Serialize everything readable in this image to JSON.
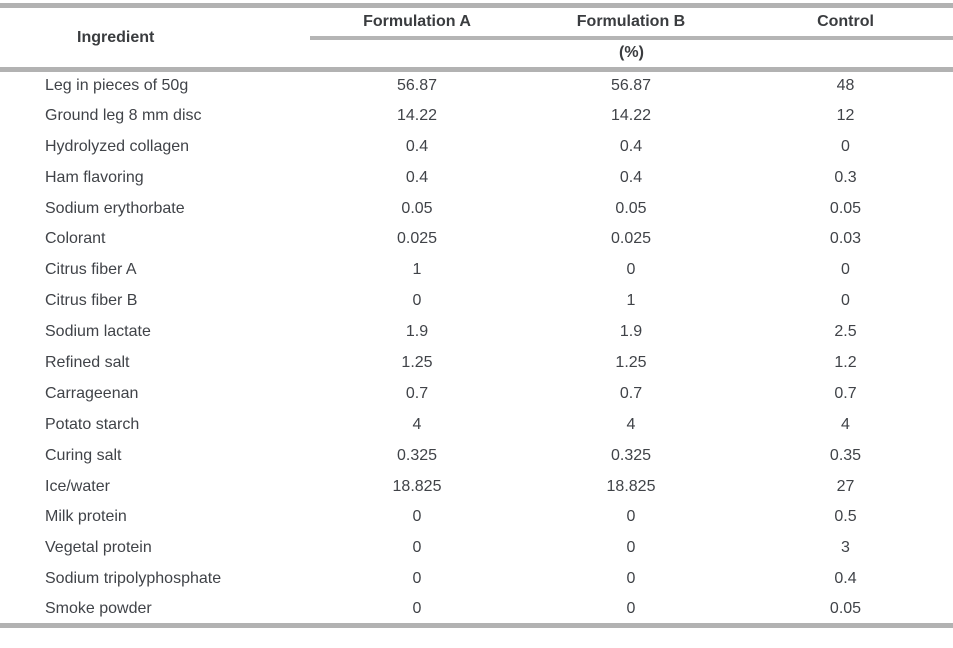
{
  "colors": {
    "rule_gray": "#b2b2b2",
    "mid_rule_gray": "#b5b5b5",
    "text": "#3e4043",
    "background": "#ffffff"
  },
  "table": {
    "headers": [
      "Ingredient",
      "Formulation A",
      "Formulation B",
      "Control"
    ],
    "unit_label": "(%)",
    "rows": [
      {
        "ingredient": "Leg in pieces of 50g",
        "formulation_a": "56.87",
        "formulation_b": "56.87",
        "control": "48"
      },
      {
        "ingredient": "Ground leg 8 mm disc",
        "formulation_a": "14.22",
        "formulation_b": "14.22",
        "control": "12"
      },
      {
        "ingredient": "Hydrolyzed collagen",
        "formulation_a": "0.4",
        "formulation_b": "0.4",
        "control": "0"
      },
      {
        "ingredient": "Ham flavoring",
        "formulation_a": "0.4",
        "formulation_b": "0.4",
        "control": "0.3"
      },
      {
        "ingredient": "Sodium erythorbate",
        "formulation_a": "0.05",
        "formulation_b": "0.05",
        "control": "0.05"
      },
      {
        "ingredient": "Colorant",
        "formulation_a": "0.025",
        "formulation_b": "0.025",
        "control": "0.03"
      },
      {
        "ingredient": "Citrus fiber A",
        "formulation_a": "1",
        "formulation_b": "0",
        "control": "0"
      },
      {
        "ingredient": "Citrus fiber B",
        "formulation_a": "0",
        "formulation_b": "1",
        "control": "0"
      },
      {
        "ingredient": "Sodium lactate",
        "formulation_a": "1.9",
        "formulation_b": "1.9",
        "control": "2.5"
      },
      {
        "ingredient": "Refined salt",
        "formulation_a": "1.25",
        "formulation_b": "1.25",
        "control": "1.2"
      },
      {
        "ingredient": "Carrageenan",
        "formulation_a": "0.7",
        "formulation_b": "0.7",
        "control": "0.7"
      },
      {
        "ingredient": "Potato starch",
        "formulation_a": "4",
        "formulation_b": "4",
        "control": "4"
      },
      {
        "ingredient": "Curing salt",
        "formulation_a": "0.325",
        "formulation_b": "0.325",
        "control": "0.35"
      },
      {
        "ingredient": "Ice/water",
        "formulation_a": "18.825",
        "formulation_b": "18.825",
        "control": "27"
      },
      {
        "ingredient": "Milk protein",
        "formulation_a": "0",
        "formulation_b": "0",
        "control": "0.5"
      },
      {
        "ingredient": "Vegetal protein",
        "formulation_a": "0",
        "formulation_b": "0",
        "control": "3"
      },
      {
        "ingredient": "Sodium tripolyphosphate",
        "formulation_a": "0",
        "formulation_b": "0",
        "control": "0.4"
      },
      {
        "ingredient": "Smoke powder",
        "formulation_a": "0",
        "formulation_b": "0",
        "control": "0.05"
      }
    ]
  },
  "chart_data": {
    "type": "table",
    "title": "",
    "unit": "%",
    "categories": [
      "Leg in pieces of 50g",
      "Ground leg 8 mm disc",
      "Hydrolyzed collagen",
      "Ham flavoring",
      "Sodium erythorbate",
      "Colorant",
      "Citrus fiber A",
      "Citrus fiber B",
      "Sodium lactate",
      "Refined salt",
      "Carrageenan",
      "Potato starch",
      "Curing salt",
      "Ice/water",
      "Milk protein",
      "Vegetal protein",
      "Sodium tripolyphosphate",
      "Smoke powder"
    ],
    "series": [
      {
        "name": "Formulation A",
        "values": [
          56.87,
          14.22,
          0.4,
          0.4,
          0.05,
          0.025,
          1,
          0,
          1.9,
          1.25,
          0.7,
          4,
          0.325,
          18.825,
          0,
          0,
          0,
          0
        ]
      },
      {
        "name": "Formulation B",
        "values": [
          56.87,
          14.22,
          0.4,
          0.4,
          0.05,
          0.025,
          0,
          1,
          1.9,
          1.25,
          0.7,
          4,
          0.325,
          18.825,
          0,
          0,
          0,
          0
        ]
      },
      {
        "name": "Control",
        "values": [
          48,
          12,
          0,
          0.3,
          0.05,
          0.03,
          0,
          0,
          2.5,
          1.2,
          0.7,
          4,
          0.35,
          27,
          0.5,
          3,
          0.4,
          0.05
        ]
      }
    ]
  }
}
